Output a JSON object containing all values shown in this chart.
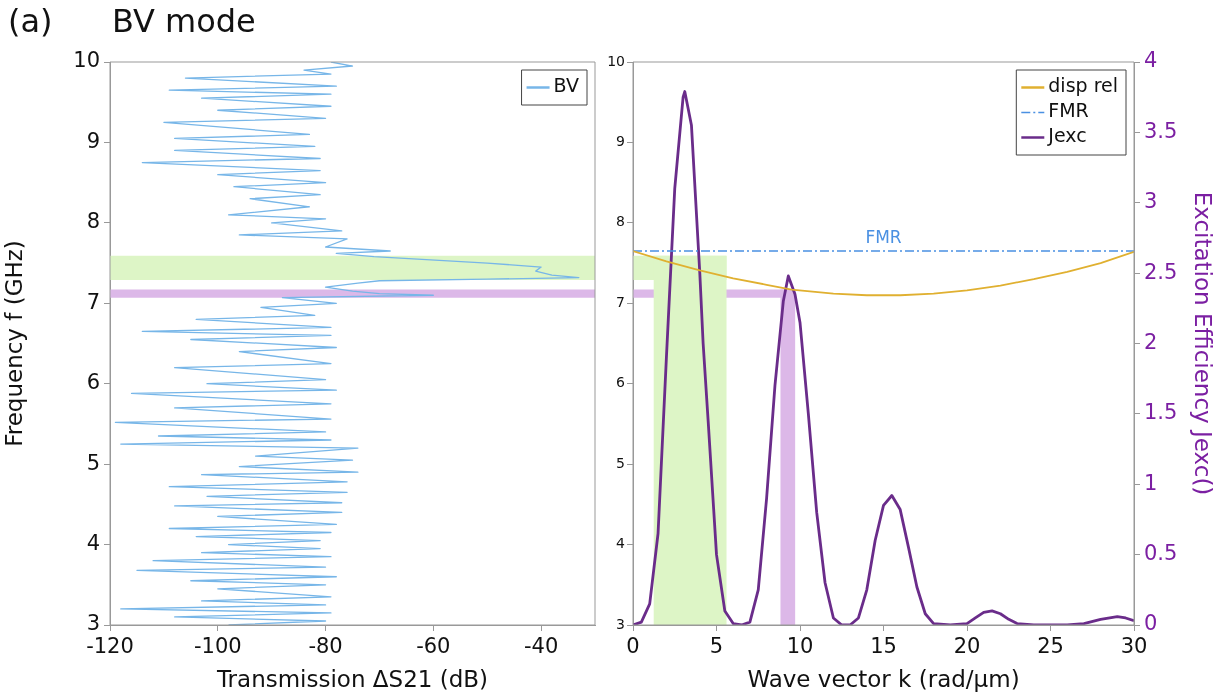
{
  "chart_data": [
    {
      "type": "line",
      "title": "BV mode",
      "annotations": [
        "(a)"
      ],
      "xlabel": "Transmission ΔS21 (dB)",
      "ylabel": "Frequency f (GHz)",
      "xlim": [
        -120,
        -30
      ],
      "xticks": [
        -120,
        -100,
        -80,
        -60,
        -40
      ],
      "ylim": [
        3,
        10
      ],
      "yticks": [
        3,
        4,
        5,
        6,
        7,
        8,
        9,
        10
      ],
      "legend": "top right",
      "marker": "none",
      "bands": [
        {
          "axis": "y",
          "from": 7.29,
          "to": 7.59,
          "color": "#ddf5c6"
        },
        {
          "axis": "y",
          "from": 7.07,
          "to": 7.17,
          "color": "#dcb8e8"
        }
      ],
      "series": [
        {
          "name": "BV",
          "color": "#77b6e8",
          "x": [
            -98,
            -80,
            -108,
            -79,
            -118,
            -80,
            -103,
            -79,
            -100,
            -80,
            -105,
            -78,
            -115,
            -80,
            -112,
            -79,
            -103,
            -81,
            -98,
            -81,
            -104,
            -79,
            -109,
            -78,
            -100,
            -77,
            -108,
            -77,
            -102,
            -76,
            -109,
            -76,
            -103,
            -74,
            -96,
            -75,
            -93,
            -74,
            -118,
            -79,
            -111,
            -80,
            -119,
            -79,
            -108,
            -79,
            -116,
            -78,
            -102,
            -80,
            -108,
            -79,
            -96,
            -78,
            -105,
            -79,
            -114,
            -79,
            -104,
            -82,
            -92,
            -78,
            -88,
            -60,
            -70,
            -75,
            -80,
            -74,
            -70,
            -50,
            -33,
            -38,
            -41,
            -40,
            -50,
            -71,
            -78,
            -68,
            -80,
            -76,
            -96,
            -77,
            -90,
            -80,
            -98,
            -83,
            -94,
            -81,
            -97,
            -80,
            -100,
            -81,
            -114,
            -81,
            -108,
            -82,
            -108,
            -83,
            -110,
            -80,
            -100,
            -79,
            -103,
            -79,
            -109,
            -78,
            -106,
            -79,
            -84,
            -75,
            -79
          ],
          "values": [
            3.0,
            3.05,
            3.1,
            3.15,
            3.2,
            3.25,
            3.3,
            3.35,
            3.45,
            3.5,
            3.55,
            3.6,
            3.68,
            3.72,
            3.8,
            3.85,
            3.9,
            3.95,
            4.0,
            4.05,
            4.1,
            4.15,
            4.2,
            4.25,
            4.35,
            4.4,
            4.48,
            4.52,
            4.6,
            4.65,
            4.72,
            4.78,
            4.87,
            4.9,
            4.97,
            5.05,
            5.1,
            5.2,
            5.25,
            5.3,
            5.35,
            5.4,
            5.52,
            5.56,
            5.7,
            5.75,
            5.88,
            5.92,
            6.0,
            6.05,
            6.2,
            6.25,
            6.4,
            6.45,
            6.55,
            6.6,
            6.65,
            6.7,
            6.8,
            6.85,
            6.95,
            7.0,
            7.07,
            7.1,
            7.12,
            7.15,
            7.2,
            7.25,
            7.28,
            7.3,
            7.32,
            7.35,
            7.4,
            7.45,
            7.5,
            7.58,
            7.62,
            7.65,
            7.7,
            7.8,
            7.85,
            7.9,
            8.0,
            8.05,
            8.1,
            8.2,
            8.3,
            8.35,
            8.45,
            8.5,
            8.6,
            8.65,
            8.75,
            8.8,
            8.9,
            8.95,
            9.05,
            9.1,
            9.25,
            9.3,
            9.4,
            9.45,
            9.55,
            9.6,
            9.65,
            9.7,
            9.8,
            9.85,
            9.9,
            9.95,
            10.0
          ]
        }
      ]
    },
    {
      "type": "line",
      "xlabel": "Wave vector k (rad/µm)",
      "y2label": "Excitation Efficiency Jexc()",
      "xlim": [
        0,
        30
      ],
      "xticks": [
        0,
        5,
        10,
        15,
        20,
        25,
        30
      ],
      "ylim": [
        3,
        10
      ],
      "yticks": [
        3,
        4,
        5,
        6,
        7,
        8,
        9,
        10
      ],
      "y2lim": [
        0,
        4
      ],
      "y2ticks": [
        0,
        0.5,
        1,
        1.5,
        2,
        2.5,
        3,
        3.5,
        4
      ],
      "legend": "top right",
      "marker": "none",
      "annotations": [
        {
          "text": "FMR",
          "x": 15,
          "y": 7.65
        }
      ],
      "bands": [
        {
          "axis": "y",
          "from": 7.29,
          "to": 7.59,
          "color": "#ddf5c6"
        },
        {
          "axis": "y",
          "from": 7.07,
          "to": 7.17,
          "color": "#dcb8e8"
        },
        {
          "axis": "x",
          "from": 1.24,
          "to": 5.6,
          "color": "#ddf5c6"
        },
        {
          "axis": "x",
          "from": 8.83,
          "to": 9.71,
          "color": "#dcb8e8"
        }
      ],
      "series": [
        {
          "name": "disp rel",
          "color": "#e0b030",
          "x": [
            0,
            2,
            4,
            6,
            8,
            9.5,
            12,
            14,
            16,
            18,
            20,
            22,
            24,
            26,
            28,
            30
          ],
          "values": [
            7.65,
            7.52,
            7.41,
            7.31,
            7.23,
            7.17,
            7.12,
            7.1,
            7.1,
            7.12,
            7.16,
            7.22,
            7.3,
            7.39,
            7.5,
            7.64
          ]
        },
        {
          "name": "FMR",
          "color": "#4a90e2",
          "line_style": "dashed",
          "x": [
            0,
            30
          ],
          "values": [
            7.65,
            7.65
          ]
        },
        {
          "name": "Jexc",
          "color": "#6a2c8a",
          "axis": "y2",
          "x": [
            0,
            0.5,
            1,
            1.5,
            2,
            2.5,
            3,
            3.1,
            3.5,
            4,
            4.2,
            4.5,
            5,
            5.5,
            6,
            6.5,
            7,
            7.5,
            8,
            8.5,
            9,
            9.3,
            9.7,
            10,
            10.5,
            11,
            11.5,
            12,
            12.5,
            13,
            13.5,
            14,
            14.5,
            15,
            15.5,
            16,
            16.5,
            17,
            17.5,
            18,
            19,
            20,
            20.5,
            21,
            21.5,
            22,
            22.5,
            23,
            24,
            26,
            27,
            28,
            29,
            29.5,
            30
          ],
          "values": [
            0,
            0.02,
            0.15,
            0.65,
            1.9,
            3.1,
            3.75,
            3.79,
            3.55,
            2.5,
            2.0,
            1.45,
            0.5,
            0.1,
            0.01,
            0,
            0.02,
            0.25,
            0.9,
            1.7,
            2.3,
            2.48,
            2.35,
            2.15,
            1.5,
            0.8,
            0.3,
            0.05,
            0,
            0,
            0.05,
            0.25,
            0.6,
            0.85,
            0.92,
            0.82,
            0.55,
            0.27,
            0.08,
            0.01,
            0,
            0.01,
            0.05,
            0.09,
            0.1,
            0.08,
            0.04,
            0.01,
            0,
            0,
            0.01,
            0.04,
            0.06,
            0.05,
            0.03
          ]
        }
      ]
    }
  ]
}
